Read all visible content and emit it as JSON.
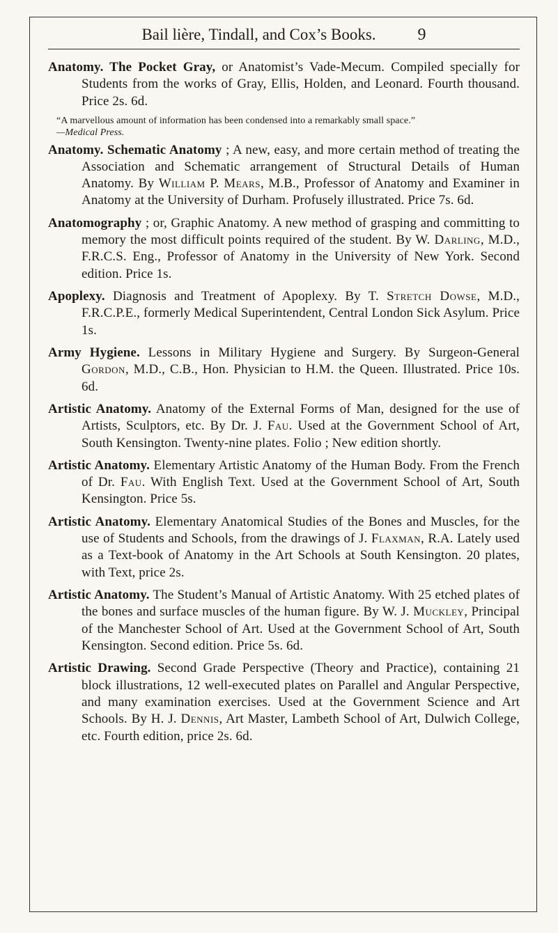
{
  "running_head": {
    "title": "Bail lière, Tindall, and Cox’s Books.",
    "page_number": "9"
  },
  "entries": [
    {
      "head": "Anatomy.  The Pocket Gray,",
      "body": " or Anatomist’s Vade-Mecum. Compiled specially for Students from the works of Gray, Ellis, Holden, and Leonard.  Fourth thousand.  Price 2s. 6d."
    },
    {
      "quote": "“A marvellous amount of information has been condensed into a remarkably small space.”",
      "attr": "—Medical Press."
    },
    {
      "head": "Anatomy.  Schematic  Anatomy",
      "body": " ;  A new, easy, and more certain method of treating the Association and Schematic arrangement of Structural Details of Human Anatomy.  By ",
      "sc1": "William",
      "body2": " P. ",
      "sc2": "Mears",
      "body3": ", M.B., Professor of Anatomy and Examiner in Anatomy at the University of Durham.  Profusely illustrated.  Price 7s. 6d."
    },
    {
      "head": "Anatomography",
      "body": " ; or, Graphic Anatomy.  A new method of grasping and committing to memory the most difficult points required of the student.  By W. ",
      "sc1": "Darling",
      "body2": ", M.D., F.R.C.S. Eng., Professor of Anatomy in the University of New York.  Second edition.  Price 1s."
    },
    {
      "head": "Apoplexy.",
      "body": "  Diagnosis and Treatment of Apoplexy.  By T. ",
      "sc1": "Stretch Dowse",
      "body2": ", M.D., F.R.C.P.E., formerly Medical Superintendent, Central London Sick Asylum.  Price 1s."
    },
    {
      "head": "Army Hygiene.",
      "body": "  Lessons in Military Hygiene and Surgery.  By Surgeon-General ",
      "sc1": "Gordon",
      "body2": ", M.D., C.B., Hon. Physician to H.M. the Queen.  Illustrated.  Price 10s. 6d."
    },
    {
      "head": "Artistic Anatomy.",
      "body": "  Anatomy of the External Forms of Man, designed for the use of Artists, Sculptors, etc.  By Dr. J. ",
      "sc1": "Fau",
      "body2": ".  Used at the Government School of Art, South Kensington.  Twenty-nine plates.  Folio ; New edition shortly."
    },
    {
      "head": "Artistic Anatomy.",
      "body": "  Elementary Artistic Anatomy of the Human Body.  From the French of Dr. ",
      "sc1": "Fau",
      "body2": ".  With English Text.  Used at the Government School of Art, South Kensington.  Price 5s."
    },
    {
      "head": "Artistic Anatomy.",
      "body": "  Elementary Anatomical Studies of the Bones and Muscles, for the use of Students and Schools, from the drawings of J. ",
      "sc1": "Flaxman",
      "body2": ", R.A.  Lately used as a Text-book of Anatomy in the Art Schools at South Kensington.  20 plates, with Text, price 2s."
    },
    {
      "head": "Artistic Anatomy.",
      "body": "  The Student’s Manual of Artistic Anatomy.  With 25 etched plates of the bones and surface muscles of the human figure.  By W. J. ",
      "sc1": "Muckley",
      "body2": ", Principal of the Manchester School of Art.  Used at the Government School of Art, South Kensington.  Second edition.  Price 5s. 6d."
    },
    {
      "head": "Artistic Drawing.",
      "body": "  Second Grade Perspective (Theory and Practice), containing 21 block illustrations, 12 well-executed plates on Parallel and Angular Perspective, and many examination exercises.  Used at the Government Science and Art Schools.  By H. J. ",
      "sc1": "Dennis",
      "body2": ", Art Master, Lambeth School of Art, Dulwich College, etc.  Fourth edition, price 2s. 6d."
    }
  ]
}
